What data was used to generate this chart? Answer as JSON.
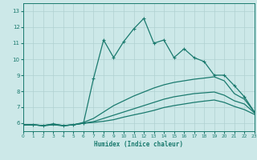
{
  "xlabel": "Humidex (Indice chaleur)",
  "bg_color": "#cce8e8",
  "grid_color": "#b0d0d0",
  "line_color": "#1a7a6e",
  "xlim": [
    0,
    23
  ],
  "ylim": [
    5.5,
    13.5
  ],
  "xticks": [
    0,
    1,
    2,
    3,
    4,
    5,
    6,
    7,
    8,
    9,
    10,
    11,
    12,
    13,
    14,
    15,
    16,
    17,
    18,
    19,
    20,
    21,
    22,
    23
  ],
  "yticks": [
    6,
    7,
    8,
    9,
    10,
    11,
    12,
    13
  ],
  "series1": [
    [
      0,
      5.9
    ],
    [
      1,
      5.9
    ],
    [
      2,
      5.85
    ],
    [
      3,
      5.95
    ],
    [
      4,
      5.85
    ],
    [
      5,
      5.9
    ],
    [
      6,
      6.0
    ],
    [
      7,
      8.8
    ],
    [
      8,
      11.2
    ],
    [
      9,
      10.1
    ],
    [
      10,
      11.1
    ],
    [
      11,
      11.9
    ],
    [
      12,
      12.55
    ],
    [
      13,
      11.0
    ],
    [
      14,
      11.2
    ],
    [
      15,
      10.1
    ],
    [
      16,
      10.65
    ],
    [
      17,
      10.1
    ],
    [
      18,
      9.85
    ],
    [
      19,
      9.0
    ],
    [
      20,
      9.0
    ],
    [
      21,
      8.35
    ],
    [
      22,
      7.65
    ],
    [
      23,
      6.7
    ]
  ],
  "series2": [
    [
      0,
      5.9
    ],
    [
      1,
      5.9
    ],
    [
      2,
      5.85
    ],
    [
      3,
      5.95
    ],
    [
      4,
      5.85
    ],
    [
      5,
      5.9
    ],
    [
      6,
      6.05
    ],
    [
      7,
      6.3
    ],
    [
      8,
      6.7
    ],
    [
      9,
      7.1
    ],
    [
      10,
      7.4
    ],
    [
      11,
      7.7
    ],
    [
      12,
      7.95
    ],
    [
      13,
      8.2
    ],
    [
      14,
      8.4
    ],
    [
      15,
      8.55
    ],
    [
      16,
      8.65
    ],
    [
      17,
      8.75
    ],
    [
      18,
      8.82
    ],
    [
      19,
      8.9
    ],
    [
      20,
      8.65
    ],
    [
      21,
      7.85
    ],
    [
      22,
      7.5
    ],
    [
      23,
      6.7
    ]
  ],
  "series3": [
    [
      0,
      5.9
    ],
    [
      1,
      5.9
    ],
    [
      2,
      5.85
    ],
    [
      3,
      5.9
    ],
    [
      4,
      5.85
    ],
    [
      5,
      5.9
    ],
    [
      6,
      6.0
    ],
    [
      7,
      6.1
    ],
    [
      8,
      6.3
    ],
    [
      9,
      6.5
    ],
    [
      10,
      6.7
    ],
    [
      11,
      6.9
    ],
    [
      12,
      7.1
    ],
    [
      13,
      7.3
    ],
    [
      14,
      7.5
    ],
    [
      15,
      7.65
    ],
    [
      16,
      7.75
    ],
    [
      17,
      7.85
    ],
    [
      18,
      7.9
    ],
    [
      19,
      7.95
    ],
    [
      20,
      7.75
    ],
    [
      21,
      7.4
    ],
    [
      22,
      7.2
    ],
    [
      23,
      6.65
    ]
  ],
  "series4": [
    [
      0,
      5.9
    ],
    [
      1,
      5.9
    ],
    [
      2,
      5.85
    ],
    [
      3,
      5.9
    ],
    [
      4,
      5.85
    ],
    [
      5,
      5.9
    ],
    [
      6,
      6.0
    ],
    [
      7,
      6.05
    ],
    [
      8,
      6.12
    ],
    [
      9,
      6.22
    ],
    [
      10,
      6.38
    ],
    [
      11,
      6.52
    ],
    [
      12,
      6.65
    ],
    [
      13,
      6.8
    ],
    [
      14,
      6.98
    ],
    [
      15,
      7.1
    ],
    [
      16,
      7.2
    ],
    [
      17,
      7.3
    ],
    [
      18,
      7.38
    ],
    [
      19,
      7.45
    ],
    [
      20,
      7.3
    ],
    [
      21,
      7.05
    ],
    [
      22,
      6.85
    ],
    [
      23,
      6.55
    ]
  ]
}
